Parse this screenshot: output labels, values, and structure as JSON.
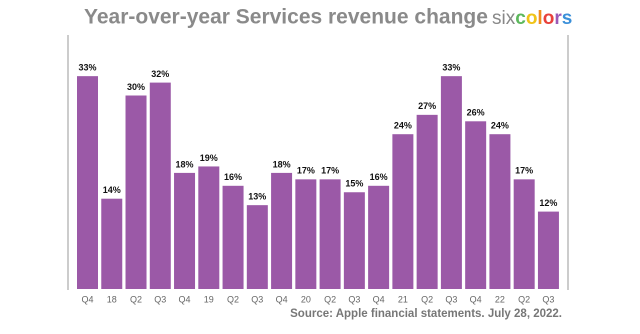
{
  "chart_data": {
    "type": "bar",
    "title": "Year-over-year Services revenue change",
    "logo": [
      "six",
      "colors"
    ],
    "source": "Source: Apple financial statements. July 28, 2022.",
    "categories": [
      "Q4",
      "18",
      "Q2",
      "Q3",
      "Q4",
      "19",
      "Q2",
      "Q3",
      "Q4",
      "20",
      "Q2",
      "Q3",
      "Q4",
      "21",
      "Q2",
      "Q3",
      "Q4",
      "22",
      "Q2",
      "Q3"
    ],
    "values": [
      33,
      14,
      30,
      32,
      18,
      19,
      16,
      13,
      18,
      17,
      17,
      15,
      16,
      24,
      27,
      33,
      26,
      24,
      17,
      12
    ],
    "value_labels": [
      "33%",
      "14%",
      "30%",
      "32%",
      "18%",
      "19%",
      "16%",
      "13%",
      "18%",
      "17%",
      "17%",
      "15%",
      "16%",
      "24%",
      "27%",
      "33%",
      "26%",
      "24%",
      "17%",
      "12%"
    ],
    "color": "#9b59a7"
  }
}
